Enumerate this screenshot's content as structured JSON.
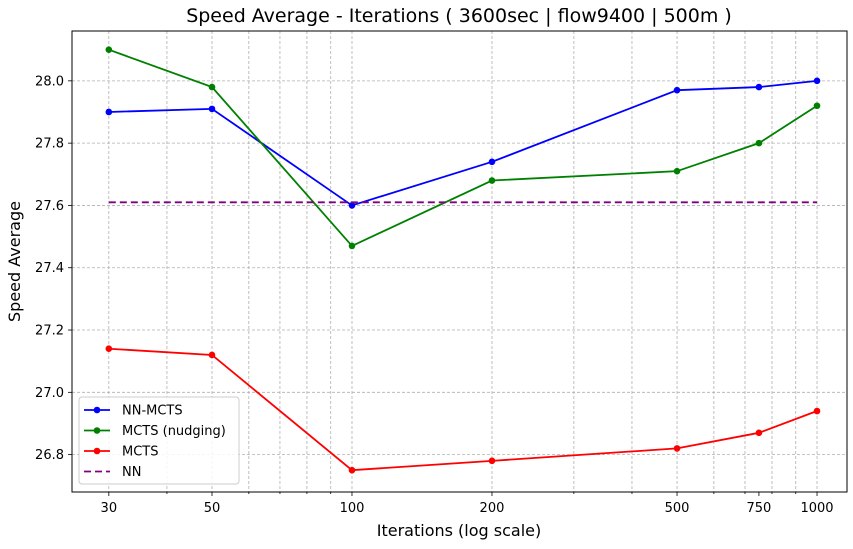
{
  "chart_data": {
    "type": "line",
    "title": "Speed Average - Iterations ( 3600sec | flow9400 | 500m )",
    "xlabel": "Iterations (log scale)",
    "ylabel": "Speed Average",
    "xscale": "log",
    "x": [
      30,
      50,
      100,
      200,
      500,
      750,
      1000
    ],
    "x_tick_labels": [
      "30",
      "50",
      "100",
      "200",
      "500",
      "750",
      "1000"
    ],
    "xlim": [
      25,
      1160
    ],
    "ylim": [
      26.68,
      28.16
    ],
    "y_ticks": [
      26.8,
      27.0,
      27.2,
      27.4,
      27.6,
      27.8,
      28.0
    ],
    "y_tick_labels": [
      "26.8",
      "27.0",
      "27.2",
      "27.4",
      "27.6",
      "27.8",
      "28.0"
    ],
    "grid": true,
    "legend_position": "lower-left",
    "series": [
      {
        "name": "NN-MCTS",
        "color": "#0000ff",
        "style": "solid-marker",
        "values": [
          27.9,
          27.91,
          27.6,
          27.74,
          27.97,
          27.98,
          28.0
        ]
      },
      {
        "name": "MCTS (nudging)",
        "color": "#008000",
        "style": "solid-marker",
        "values": [
          28.1,
          27.98,
          27.47,
          27.68,
          27.71,
          27.8,
          27.92
        ]
      },
      {
        "name": "MCTS",
        "color": "#ff0000",
        "style": "solid-marker",
        "values": [
          27.14,
          27.12,
          26.75,
          26.78,
          26.82,
          26.87,
          26.94
        ]
      },
      {
        "name": "NN",
        "color": "#800080",
        "style": "dashed",
        "values": [
          27.61,
          27.61,
          27.61,
          27.61,
          27.61,
          27.61,
          27.61
        ]
      }
    ]
  }
}
